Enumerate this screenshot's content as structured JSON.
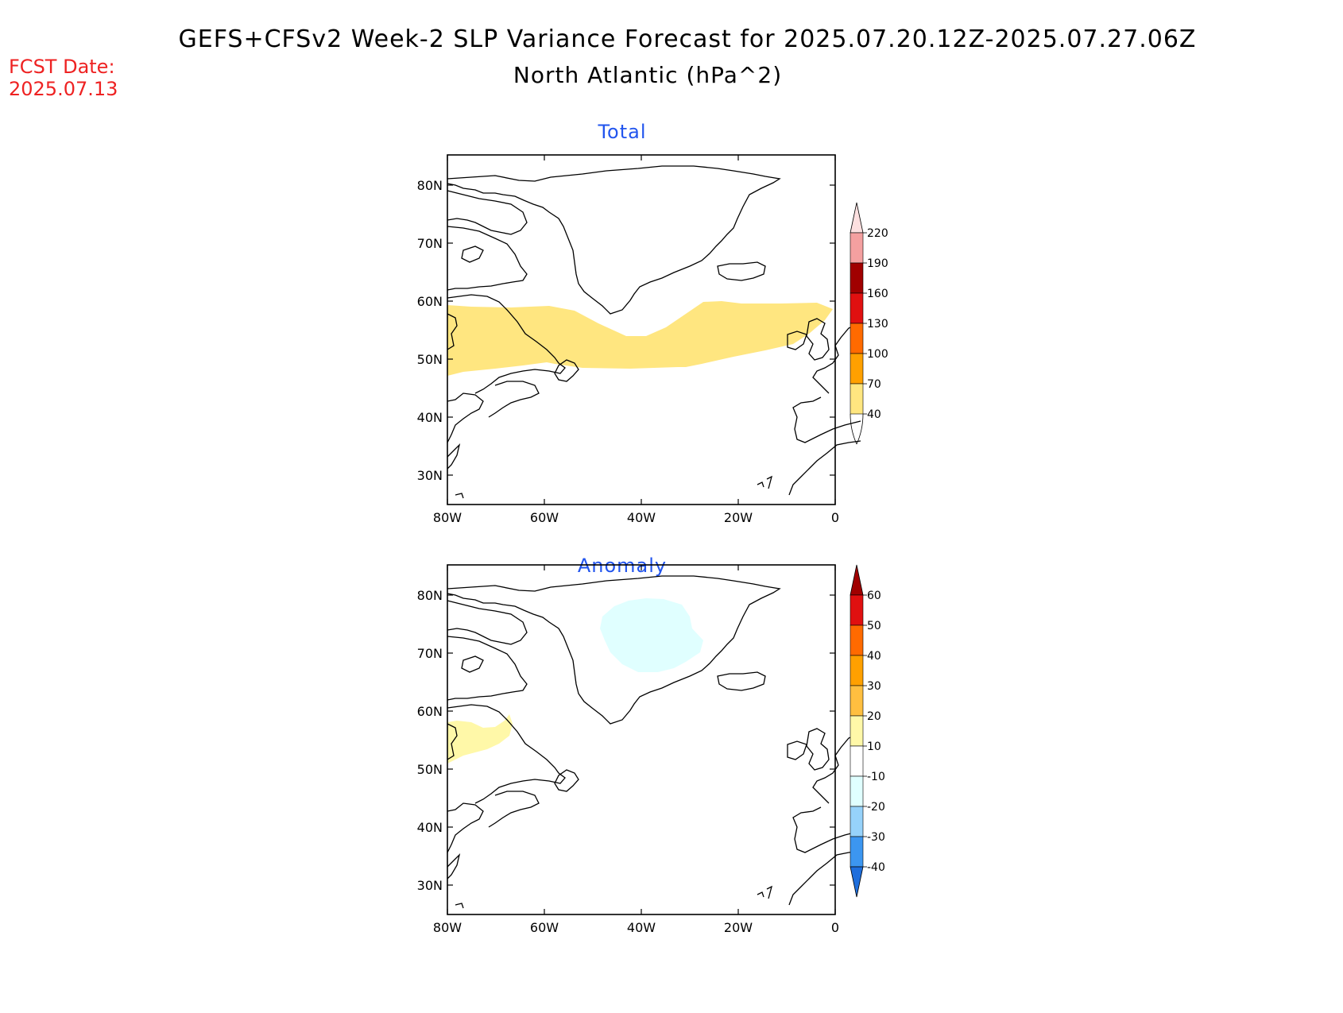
{
  "header": {
    "title_line1": "GEFS+CFSv2 Week-2 SLP Variance Forecast for 2025.07.20.12Z-2025.07.27.06Z",
    "title_line2": "North Atlantic (hPa^2)",
    "fcst_label": "FCST Date:",
    "fcst_date": "2025.07.13"
  },
  "panels": [
    {
      "title": "Total"
    },
    {
      "title": "Anomaly"
    }
  ],
  "axes": {
    "lat_ticks": [
      "80N",
      "70N",
      "60N",
      "50N",
      "40N",
      "30N"
    ],
    "lon_ticks": [
      "80W",
      "60W",
      "40W",
      "20W",
      "0"
    ]
  },
  "colorbars": {
    "total": {
      "labels": [
        "220",
        "190",
        "160",
        "130",
        "100",
        "70",
        "40"
      ],
      "colors": [
        "#fde0e0",
        "#f4a0a0",
        "#a00000",
        "#e01010",
        "#ff6a00",
        "#ffa000",
        "#ffe680"
      ]
    },
    "anomaly": {
      "labels": [
        "60",
        "50",
        "40",
        "30",
        "20",
        "10",
        "-10",
        "-20",
        "-30",
        "-40"
      ],
      "colors": [
        "#a00000",
        "#e01010",
        "#ff6a00",
        "#ffa000",
        "#ffbf40",
        "#fff8a8",
        "#ffffff",
        "#e0ffff",
        "#96d2fa",
        "#3c96f0",
        "#1e6edc"
      ]
    }
  },
  "fill_colors": {
    "total_band": "#ffe680",
    "anomaly_positive": "#fff8a8",
    "anomaly_negative": "#e0ffff"
  }
}
